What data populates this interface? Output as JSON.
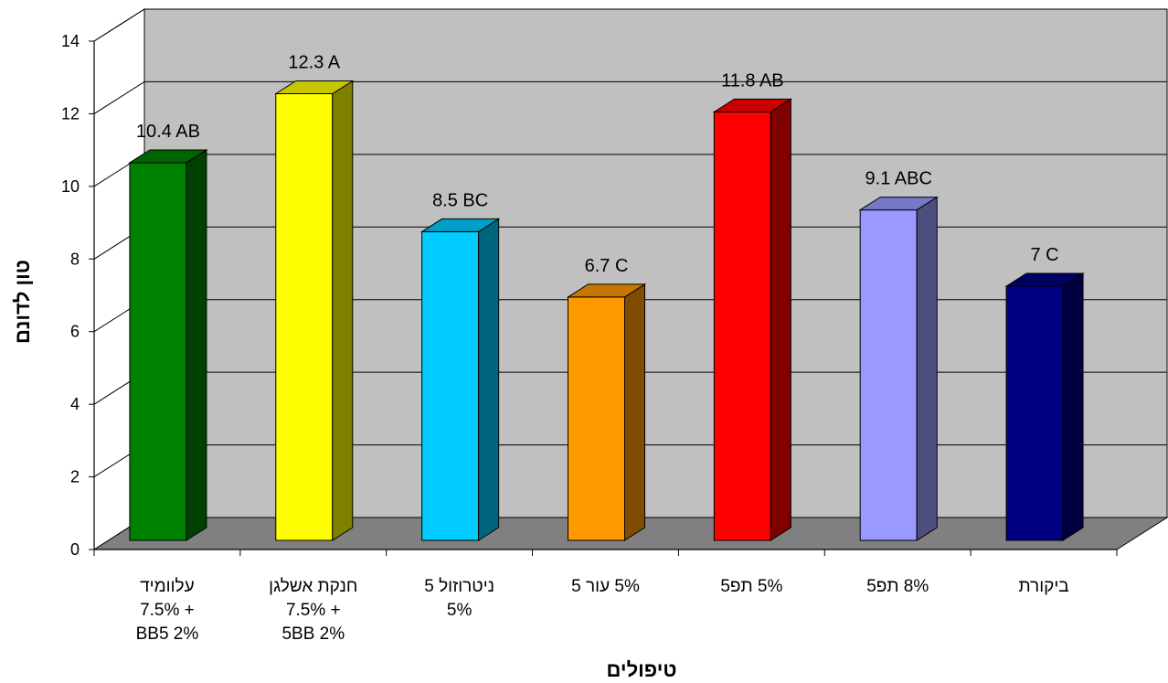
{
  "chart_data": {
    "type": "bar",
    "title": "",
    "xlabel": "טיפולים",
    "ylabel": "טון לדונם",
    "ylim": [
      0,
      14
    ],
    "yticks": [
      0,
      2,
      4,
      6,
      8,
      10,
      12,
      14
    ],
    "grid": true,
    "categories": [
      [
        "עלוומיד",
        "+ 7.5%",
        "BB5 2%"
      ],
      [
        "חנקת אשלגן",
        "+ 7.5%",
        "5BB 2%"
      ],
      [
        "ניטרוזול 5",
        "5%"
      ],
      [
        "5%  עור 5"
      ],
      [
        "5%  תפ5"
      ],
      [
        "8%  תפ5"
      ],
      [
        "ביקורת"
      ]
    ],
    "values": [
      10.4,
      12.3,
      8.5,
      6.7,
      11.8,
      9.1,
      7
    ],
    "data_labels": [
      "10.4  AB",
      "12.3  A",
      "8.5  BC",
      "6.7  C",
      "11.8  AB",
      "9.1  ABC",
      "7  C"
    ],
    "colors": {
      "bars": [
        "#008000",
        "#FFFF00",
        "#00CCFF",
        "#FF9900",
        "#FF0000",
        "#9999FF",
        "#000080"
      ],
      "wall": "#C0C0C0",
      "floor": "#808080"
    }
  }
}
